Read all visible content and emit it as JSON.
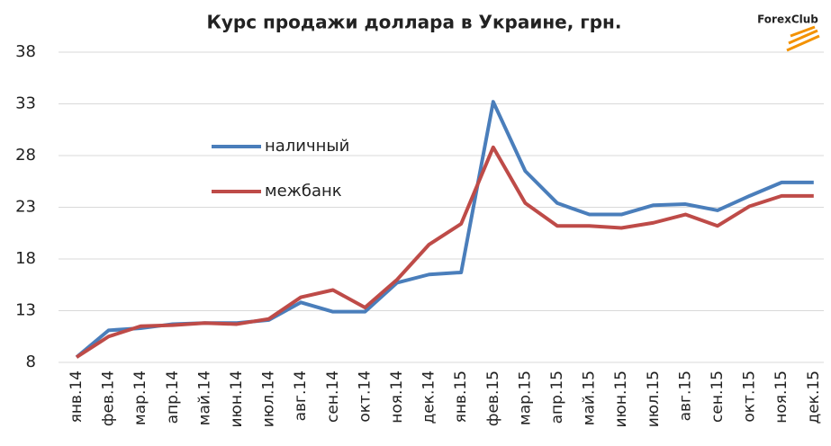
{
  "chart_data": {
    "type": "line",
    "title": "Курс продажи доллара  в Украине, грн.",
    "logo": "ForexClub",
    "categories": [
      "янв.14",
      "фев.14",
      "мар.14",
      "апр.14",
      "май.14",
      "июн.14",
      "июл.14",
      "авг.14",
      "сен.14",
      "окт.14",
      "ноя.14",
      "дек.14",
      "янв.15",
      "фев.15",
      "мар.15",
      "апр.15",
      "май.15",
      "июн.15",
      "июл.15",
      "авг.15",
      "сен.15",
      "окт.15",
      "ноя.15",
      "дек.15"
    ],
    "series": [
      {
        "name": "наличный",
        "color": "#4a7ebb",
        "values": [
          8.5,
          11.1,
          11.3,
          11.7,
          11.8,
          11.8,
          12.1,
          13.8,
          12.9,
          12.9,
          15.7,
          16.5,
          16.7,
          33.2,
          26.5,
          23.4,
          22.3,
          22.3,
          23.2,
          23.3,
          22.7,
          24.1,
          25.4,
          25.4
        ]
      },
      {
        "name": "межбанк",
        "color": "#be4b48",
        "values": [
          8.5,
          10.5,
          11.5,
          11.6,
          11.8,
          11.7,
          12.2,
          14.3,
          15.0,
          13.3,
          16.0,
          19.4,
          21.4,
          28.8,
          23.4,
          21.2,
          21.2,
          21.0,
          21.5,
          22.3,
          21.2,
          23.1,
          24.1,
          24.1
        ]
      }
    ],
    "ylim": [
      8,
      38
    ],
    "yticks": [
      8,
      13,
      18,
      23,
      28,
      33,
      38
    ],
    "grid": true,
    "legend": "inside"
  }
}
